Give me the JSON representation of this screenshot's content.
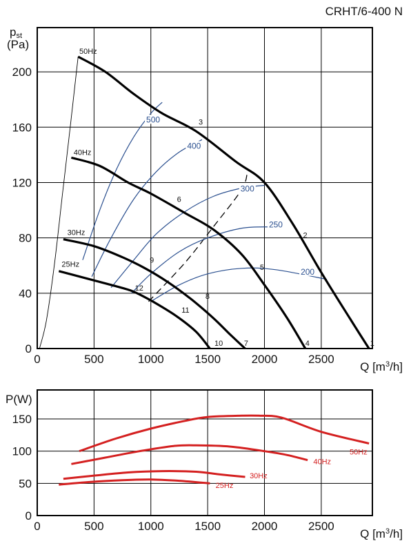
{
  "model_title": "CRHT/6-400 N",
  "colors": {
    "curve": "#000000",
    "iso": "#2a4f8f",
    "power": "#d42020",
    "frame": "#000000"
  },
  "chart_data": [
    {
      "type": "line",
      "ylabel_main": "p",
      "ylabel_sub": "st",
      "ylabel_unit": "(Pa)",
      "xlabel": "Q [m",
      "xlabel_sup": "3",
      "xlabel_tail": "/h]",
      "xlim": [
        0,
        2950
      ],
      "ylim": [
        0,
        232
      ],
      "x_ticks": [
        0,
        500,
        1000,
        1500,
        2000,
        2500
      ],
      "y_ticks": [
        0,
        40,
        80,
        120,
        160,
        200
      ],
      "grid": true,
      "series": [
        {
          "name": "50Hz",
          "label_at": [
            370,
            213
          ],
          "points": [
            [
              360,
              211
            ],
            [
              600,
              200
            ],
            [
              850,
              184
            ],
            [
              1100,
              170
            ],
            [
              1400,
              157
            ],
            [
              1750,
              135
            ],
            [
              2000,
              120
            ],
            [
              2250,
              90
            ],
            [
              2500,
              55
            ],
            [
              2750,
              22
            ],
            [
              2920,
              0
            ]
          ]
        },
        {
          "name": "40Hz",
          "label_at": [
            320,
            140
          ],
          "points": [
            [
              300,
              138
            ],
            [
              550,
              132
            ],
            [
              800,
              120
            ],
            [
              1000,
              112
            ],
            [
              1300,
              98
            ],
            [
              1550,
              86
            ],
            [
              1800,
              68
            ],
            [
              2000,
              46
            ],
            [
              2200,
              22
            ],
            [
              2360,
              0
            ]
          ]
        },
        {
          "name": "30Hz",
          "label_at": [
            265,
            82
          ],
          "points": [
            [
              230,
              79
            ],
            [
              500,
              74
            ],
            [
              750,
              66
            ],
            [
              950,
              58
            ],
            [
              1150,
              48
            ],
            [
              1350,
              36
            ],
            [
              1550,
              22
            ],
            [
              1700,
              10
            ],
            [
              1830,
              0
            ]
          ]
        },
        {
          "name": "25Hz",
          "label_at": [
            215,
            59
          ],
          "points": [
            [
              190,
              56
            ],
            [
              420,
              51
            ],
            [
              650,
              46
            ],
            [
              820,
              42
            ],
            [
              950,
              37
            ],
            [
              1100,
              30
            ],
            [
              1250,
              22
            ],
            [
              1400,
              12
            ],
            [
              1520,
              0
            ]
          ]
        }
      ],
      "iso_lines": [
        {
          "label": "500",
          "label_at": [
            1020,
            164
          ],
          "points": [
            [
              400,
              64
            ],
            [
              550,
              100
            ],
            [
              700,
              130
            ],
            [
              850,
              153
            ],
            [
              1000,
              170
            ],
            [
              1100,
              178
            ]
          ]
        },
        {
          "label": "400",
          "label_at": [
            1380,
            145
          ],
          "points": [
            [
              480,
              52
            ],
            [
              650,
              80
            ],
            [
              850,
              108
            ],
            [
              1050,
              128
            ],
            [
              1250,
              142
            ],
            [
              1450,
              151
            ]
          ]
        },
        {
          "label": "300",
          "label_at": [
            1850,
            114
          ],
          "points": [
            [
              650,
              44
            ],
            [
              850,
              64
            ],
            [
              1050,
              83
            ],
            [
              1300,
              99
            ],
            [
              1550,
              110
            ],
            [
              1800,
              116
            ],
            [
              2000,
              118
            ]
          ]
        },
        {
          "label": "250",
          "label_at": [
            2100,
            88
          ],
          "points": [
            [
              830,
              40
            ],
            [
              1000,
              54
            ],
            [
              1250,
              70
            ],
            [
              1500,
              80
            ],
            [
              1800,
              87
            ],
            [
              2050,
              88
            ]
          ]
        },
        {
          "label": "200",
          "label_at": [
            2380,
            54
          ],
          "points": [
            [
              1000,
              34
            ],
            [
              1250,
              46
            ],
            [
              1500,
              54
            ],
            [
              1800,
              58
            ],
            [
              2100,
              57
            ],
            [
              2550,
              50
            ]
          ]
        }
      ],
      "system_curves": [
        {
          "points": [
            [
              20,
              0
            ],
            [
              80,
              20
            ],
            [
              150,
              60
            ],
            [
              220,
              110
            ],
            [
              290,
              160
            ],
            [
              360,
              211
            ]
          ]
        },
        {
          "points": [
            [
              980,
              34
            ],
            [
              1300,
              62
            ],
            [
              1550,
              88
            ],
            [
              1800,
              115
            ],
            [
              1850,
              128
            ]
          ],
          "style": "dashed"
        }
      ],
      "point_labels": [
        {
          "text": "1",
          "at": [
            2930,
            2
          ]
        },
        {
          "text": "2",
          "at": [
            2340,
            80
          ]
        },
        {
          "text": "3",
          "at": [
            1420,
            162
          ]
        },
        {
          "text": "4",
          "at": [
            2360,
            2
          ]
        },
        {
          "text": "5",
          "at": [
            1960,
            57
          ]
        },
        {
          "text": "6",
          "at": [
            1230,
            106
          ]
        },
        {
          "text": "7",
          "at": [
            1820,
            2
          ]
        },
        {
          "text": "8",
          "at": [
            1480,
            36
          ]
        },
        {
          "text": "9",
          "at": [
            990,
            62
          ]
        },
        {
          "text": "10",
          "at": [
            1560,
            2
          ]
        },
        {
          "text": "11",
          "at": [
            1270,
            26
          ]
        },
        {
          "text": "12",
          "at": [
            860,
            42
          ]
        }
      ]
    },
    {
      "type": "line",
      "ylabel": "P(W)",
      "xlabel": "Q [m",
      "xlabel_sup": "3",
      "xlabel_tail": "/h]",
      "xlim": [
        0,
        2950
      ],
      "ylim": [
        0,
        195
      ],
      "x_ticks": [
        0,
        500,
        1000,
        1500,
        2000,
        2500
      ],
      "y_ticks": [
        0,
        50,
        100,
        150
      ],
      "grid": true,
      "series": [
        {
          "name": "50Hz",
          "label_at": [
            2750,
            95
          ],
          "points": [
            [
              370,
              100
            ],
            [
              700,
              120
            ],
            [
              1000,
              135
            ],
            [
              1300,
              147
            ],
            [
              1500,
              153
            ],
            [
              1800,
              155
            ],
            [
              1950,
              155
            ],
            [
              2150,
              152
            ],
            [
              2500,
              130
            ],
            [
              2920,
              112
            ]
          ]
        },
        {
          "name": "40Hz",
          "label_at": [
            2430,
            80
          ],
          "points": [
            [
              300,
              80
            ],
            [
              600,
              90
            ],
            [
              900,
              100
            ],
            [
              1200,
              108
            ],
            [
              1400,
              109
            ],
            [
              1700,
              107
            ],
            [
              2000,
              100
            ],
            [
              2200,
              94
            ],
            [
              2380,
              86
            ]
          ]
        },
        {
          "name": "30Hz",
          "label_at": [
            1870,
            58
          ],
          "points": [
            [
              230,
              57
            ],
            [
              500,
              62
            ],
            [
              800,
              67
            ],
            [
              1100,
              69
            ],
            [
              1400,
              68
            ],
            [
              1600,
              64
            ],
            [
              1830,
              60
            ]
          ]
        },
        {
          "name": "25Hz",
          "label_at": [
            1570,
            43
          ],
          "points": [
            [
              190,
              48
            ],
            [
              450,
              52
            ],
            [
              750,
              55
            ],
            [
              1000,
              56
            ],
            [
              1250,
              54
            ],
            [
              1520,
              50
            ]
          ]
        }
      ]
    }
  ]
}
